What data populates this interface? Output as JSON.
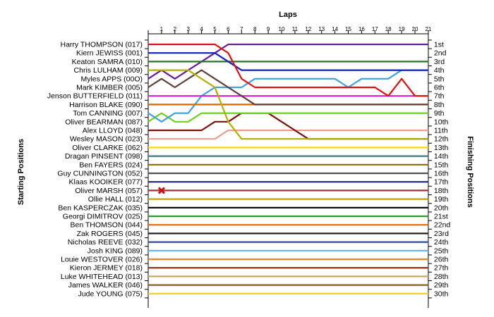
{
  "chart_data": {
    "type": "line",
    "title": "Laps",
    "ylabel_left": "Starting Positions",
    "ylabel_right": "Finishing Positions",
    "laps": [
      "1",
      "2",
      "3",
      "4",
      "5",
      "6",
      "7",
      "8",
      "9",
      "10",
      "11",
      "12",
      "13",
      "14",
      "15",
      "16",
      "17",
      "18",
      "19",
      "20",
      "21"
    ],
    "drivers": [
      "Harry THOMPSON (017)",
      "Kiern JEWISS (001)",
      "Keaton SAMRA (010)",
      "Chris LULHAM (009)",
      "Myles APPS (00O)",
      "Mark KIMBER (005)",
      "Jenson BUTTERFIELD (011)",
      "Harrison BLAKE (090)",
      "Tom CANNING (007)",
      "Oliver BEARMAN (087)",
      "Alex LLOYD (048)",
      "Wesley MASON (023)",
      "Oliver CLARKE (062)",
      "Dragan PINSENT (098)",
      "Ben FAYERS (024)",
      "Guy CUNNINGTON (052)",
      "Klaas KOOIKER (077)",
      "Oliver MARSH (057)",
      "Ollie HALL (012)",
      "Ben KASPERCZAK (035)",
      "Georgi DIMITROV (025)",
      "Ben THOMSON (044)",
      "Zak ROGERS (045)",
      "Nicholas REEVE (032)",
      "Josh KING (089)",
      "Louie WESTOVER (026)",
      "Kieron JERMEY (018)",
      "Luke WHITEHEAD (013)",
      "James WALKER (046)",
      "Jude YOUNG (075)"
    ],
    "finishing_positions": [
      "1st",
      "2nd",
      "3rd",
      "4th",
      "5th",
      "6th",
      "7th",
      "8th",
      "9th",
      "10th",
      "11th",
      "12th",
      "13th",
      "14th",
      "15th",
      "16th",
      "17th",
      "18th",
      "19th",
      "20th",
      "21st",
      "22nd",
      "23rd",
      "24th",
      "25th",
      "26th",
      "27th",
      "28th",
      "29th",
      "30th"
    ],
    "series": [
      {
        "color": "#e01010",
        "positions": [
          1,
          1,
          1,
          1,
          1,
          1,
          2,
          5,
          6,
          6,
          6,
          6,
          6,
          6,
          6,
          6,
          6,
          6,
          7,
          5,
          7,
          7
        ]
      },
      {
        "color": "#1020c0",
        "positions": [
          2,
          2,
          2,
          2,
          2,
          2,
          3,
          4,
          4,
          4,
          4,
          4,
          4,
          4,
          4,
          4,
          4,
          4,
          4,
          4,
          4,
          4
        ]
      },
      {
        "color": "#207a20",
        "positions": [
          3,
          3,
          3,
          3,
          3,
          3,
          3,
          3,
          3,
          3,
          3,
          3,
          3,
          3,
          3,
          3,
          3,
          3,
          3,
          3,
          3,
          3
        ]
      },
      {
        "color": "#b0b000",
        "positions": [
          4,
          4,
          4,
          4,
          5,
          6,
          10,
          12,
          12,
          12,
          12,
          12,
          12,
          12,
          12,
          12,
          12,
          12,
          12,
          12,
          12,
          12
        ]
      },
      {
        "color": "#6a1b9a",
        "positions": [
          5,
          4,
          5,
          4,
          3,
          2,
          1,
          1,
          1,
          1,
          1,
          1,
          1,
          1,
          1,
          1,
          1,
          1,
          1,
          1,
          1,
          1
        ]
      },
      {
        "color": "#5d4037",
        "positions": [
          6,
          5,
          6,
          5,
          4,
          5,
          6,
          7,
          8,
          8,
          8,
          8,
          8,
          8,
          8,
          8,
          8,
          8,
          8,
          8,
          8,
          8
        ]
      },
      {
        "color": "#d020d0",
        "positions": [
          7,
          7,
          7,
          7,
          7,
          7,
          7,
          7,
          7,
          7,
          7,
          7,
          7,
          7,
          7,
          7,
          7,
          7,
          7,
          7,
          7,
          7
        ]
      },
      {
        "color": "#d06a00",
        "positions": [
          8,
          8,
          8,
          8,
          8,
          8,
          8,
          8,
          8,
          8,
          8,
          8,
          8,
          8,
          8,
          8,
          8,
          8,
          8,
          8,
          8,
          8
        ]
      },
      {
        "color": "#40a0e0",
        "positions": [
          9,
          10,
          9,
          9,
          7,
          6,
          6,
          6,
          5,
          5,
          5,
          5,
          5,
          5,
          5,
          6,
          5,
          5,
          5,
          4,
          4,
          4
        ]
      },
      {
        "color": "#70d020",
        "positions": [
          10,
          9,
          10,
          10,
          9,
          9,
          9,
          9,
          9,
          9,
          9,
          9,
          9,
          9,
          9,
          9,
          9,
          9,
          9,
          9,
          9,
          9
        ]
      },
      {
        "color": "#7b0e0e",
        "positions": [
          11,
          11,
          11,
          11,
          11,
          10,
          10,
          9,
          9,
          9,
          10,
          11,
          12,
          12,
          12,
          12,
          12,
          12,
          12,
          12,
          12,
          12
        ]
      },
      {
        "color": "#e8a090",
        "positions": [
          12,
          12,
          12,
          12,
          12,
          12,
          11,
          11,
          11,
          11,
          11,
          11,
          11,
          11,
          11,
          11,
          11,
          11,
          11,
          11,
          11,
          11
        ]
      },
      {
        "color": "#ffd700",
        "positions": [
          13,
          13,
          13,
          13,
          13,
          13,
          13,
          13,
          13,
          13,
          13,
          13,
          13,
          13,
          13,
          13,
          13,
          13,
          13,
          13,
          13,
          13
        ]
      },
      {
        "color": "#3a7a7a",
        "positions": [
          14,
          14,
          14,
          14,
          14,
          14,
          14,
          14,
          14,
          14,
          14,
          14,
          14,
          14,
          14,
          14,
          14,
          14,
          14,
          14,
          14,
          14
        ]
      },
      {
        "color": "#8a6a00",
        "positions": [
          15,
          15,
          15,
          15,
          15,
          15,
          15,
          15,
          15,
          15,
          15,
          15,
          15,
          15,
          15,
          15,
          15,
          15,
          15,
          15,
          15,
          15
        ]
      },
      {
        "color": "#505050",
        "positions": [
          16,
          16,
          16,
          16,
          16,
          16,
          16,
          16,
          16,
          16,
          16,
          16,
          16,
          16,
          16,
          16,
          16,
          16,
          16,
          16,
          16,
          16
        ]
      },
      {
        "color": "#1a237e",
        "positions": [
          17,
          17,
          17,
          17,
          17,
          17,
          17,
          17,
          17,
          17,
          17,
          17,
          17,
          17,
          17,
          17,
          17,
          17,
          17,
          17,
          17,
          17
        ]
      },
      {
        "color": "#a03030",
        "positions": [
          18,
          18,
          18,
          18,
          18,
          18,
          18,
          18,
          18,
          18,
          18,
          18,
          18,
          18,
          18,
          18,
          18,
          18,
          18,
          18,
          18,
          18
        ]
      },
      {
        "color": "#c8a000",
        "positions": [
          19,
          19,
          19,
          19,
          19,
          19,
          19,
          19,
          19,
          19,
          19,
          19,
          19,
          19,
          19,
          19,
          19,
          19,
          19,
          19,
          19,
          19
        ]
      },
      {
        "color": "#000000",
        "positions": [
          20,
          20,
          20,
          20,
          20,
          20,
          20,
          20,
          20,
          20,
          20,
          20,
          20,
          20,
          20,
          20,
          20,
          20,
          20,
          20,
          20,
          20
        ]
      },
      {
        "color": "#2a9a2a",
        "positions": [
          21,
          21,
          21,
          21,
          21,
          21,
          21,
          21,
          21,
          21,
          21,
          21,
          21,
          21,
          21,
          21,
          21,
          21,
          21,
          21,
          21,
          21
        ]
      },
      {
        "color": "#e06a00",
        "positions": [
          22,
          22,
          22,
          22,
          22,
          22,
          22,
          22,
          22,
          22,
          22,
          22,
          22,
          22,
          22,
          22,
          22,
          22,
          22,
          22,
          22,
          22
        ]
      },
      {
        "color": "#202020",
        "positions": [
          23,
          23,
          23,
          23,
          23,
          23,
          23,
          23,
          23,
          23,
          23,
          23,
          23,
          23,
          23,
          23,
          23,
          23,
          23,
          23,
          23,
          23
        ]
      },
      {
        "color": "#2e4a9a",
        "positions": [
          24,
          24,
          24,
          24,
          24,
          24,
          24,
          24,
          24,
          24,
          24,
          24,
          24,
          24,
          24,
          24,
          24,
          24,
          24,
          24,
          24,
          24
        ]
      },
      {
        "color": "#60b0f0",
        "positions": [
          25,
          25,
          25,
          25,
          25,
          25,
          25,
          25,
          25,
          25,
          25,
          25,
          25,
          25,
          25,
          25,
          25,
          25,
          25,
          25,
          25,
          25
        ]
      },
      {
        "color": "#f08020",
        "positions": [
          26,
          26,
          26,
          26,
          26,
          26,
          26,
          26,
          26,
          26,
          26,
          26,
          26,
          26,
          26,
          26,
          26,
          26,
          26,
          26,
          26,
          26
        ]
      },
      {
        "color": "#8a2a0a",
        "positions": [
          27,
          27,
          27,
          27,
          27,
          27,
          27,
          27,
          27,
          27,
          27,
          27,
          27,
          27,
          27,
          27,
          27,
          27,
          27,
          27,
          27,
          27
        ]
      },
      {
        "color": "#c8a860",
        "positions": [
          28,
          28,
          28,
          28,
          28,
          28,
          28,
          28,
          28,
          28,
          28,
          28,
          28,
          28,
          28,
          28,
          28,
          28,
          28,
          28,
          28,
          28
        ]
      },
      {
        "color": "#8a5a20",
        "positions": [
          29,
          29,
          29,
          29,
          29,
          29,
          29,
          29,
          29,
          29,
          29,
          29,
          29,
          29,
          29,
          29,
          29,
          29,
          29,
          29,
          29,
          29
        ]
      },
      {
        "color": "#e8d020",
        "positions": [
          30,
          30,
          30,
          30,
          30,
          30,
          30,
          30,
          30,
          30,
          30,
          30,
          30,
          30,
          30,
          30,
          30,
          30,
          30,
          30,
          30,
          30
        ]
      }
    ],
    "retirement_marker": {
      "position": 18,
      "lap": 1,
      "color": "#d01010"
    }
  }
}
